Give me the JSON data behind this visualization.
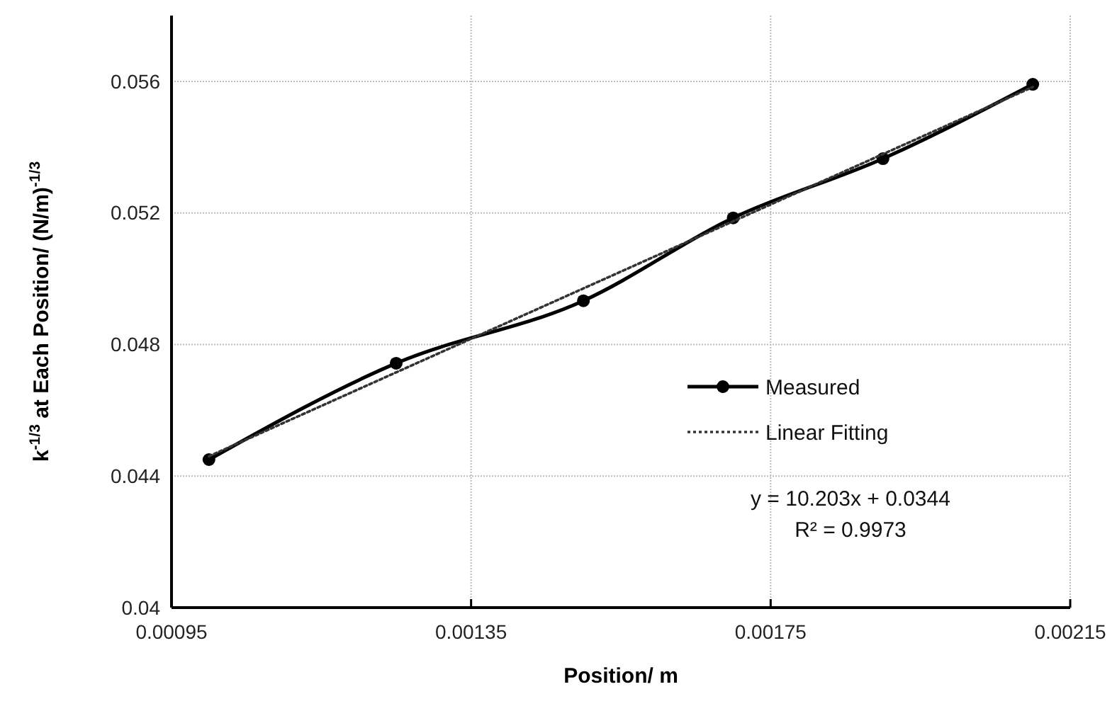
{
  "chart_data": {
    "type": "line",
    "xlabel": "Position/ m",
    "ylabel": "k$^{-1/3}$ at Each Position/ (N/m)$^{-1/3}$",
    "xlim": [
      0.00095,
      0.00215
    ],
    "xticks": [
      0.00095,
      0.00135,
      0.00175,
      0.00215
    ],
    "ylim": [
      0.04,
      0.058
    ],
    "yticks": [
      0.04,
      0.044,
      0.048,
      0.052,
      0.056
    ],
    "grid": true,
    "legend": "right",
    "series": [
      {
        "name": "Measured",
        "color": "#000000",
        "x": [
          0.001,
          0.00125,
          0.0015,
          0.0017,
          0.0019,
          0.0021
        ],
        "values": [
          0.0445,
          0.04743,
          0.04933,
          0.05185,
          0.05365,
          0.05591
        ],
        "marker": "circle",
        "line_style": "solid"
      },
      {
        "name": "Linear Fitting",
        "color": "#333333",
        "x": [
          0.001,
          0.0021
        ],
        "values": [
          0.0446,
          0.05583
        ],
        "marker": "none",
        "line_style": "dotted"
      }
    ],
    "annotations": [
      "y = 10.203x + 0.0344",
      "R² = 0.9973"
    ]
  }
}
